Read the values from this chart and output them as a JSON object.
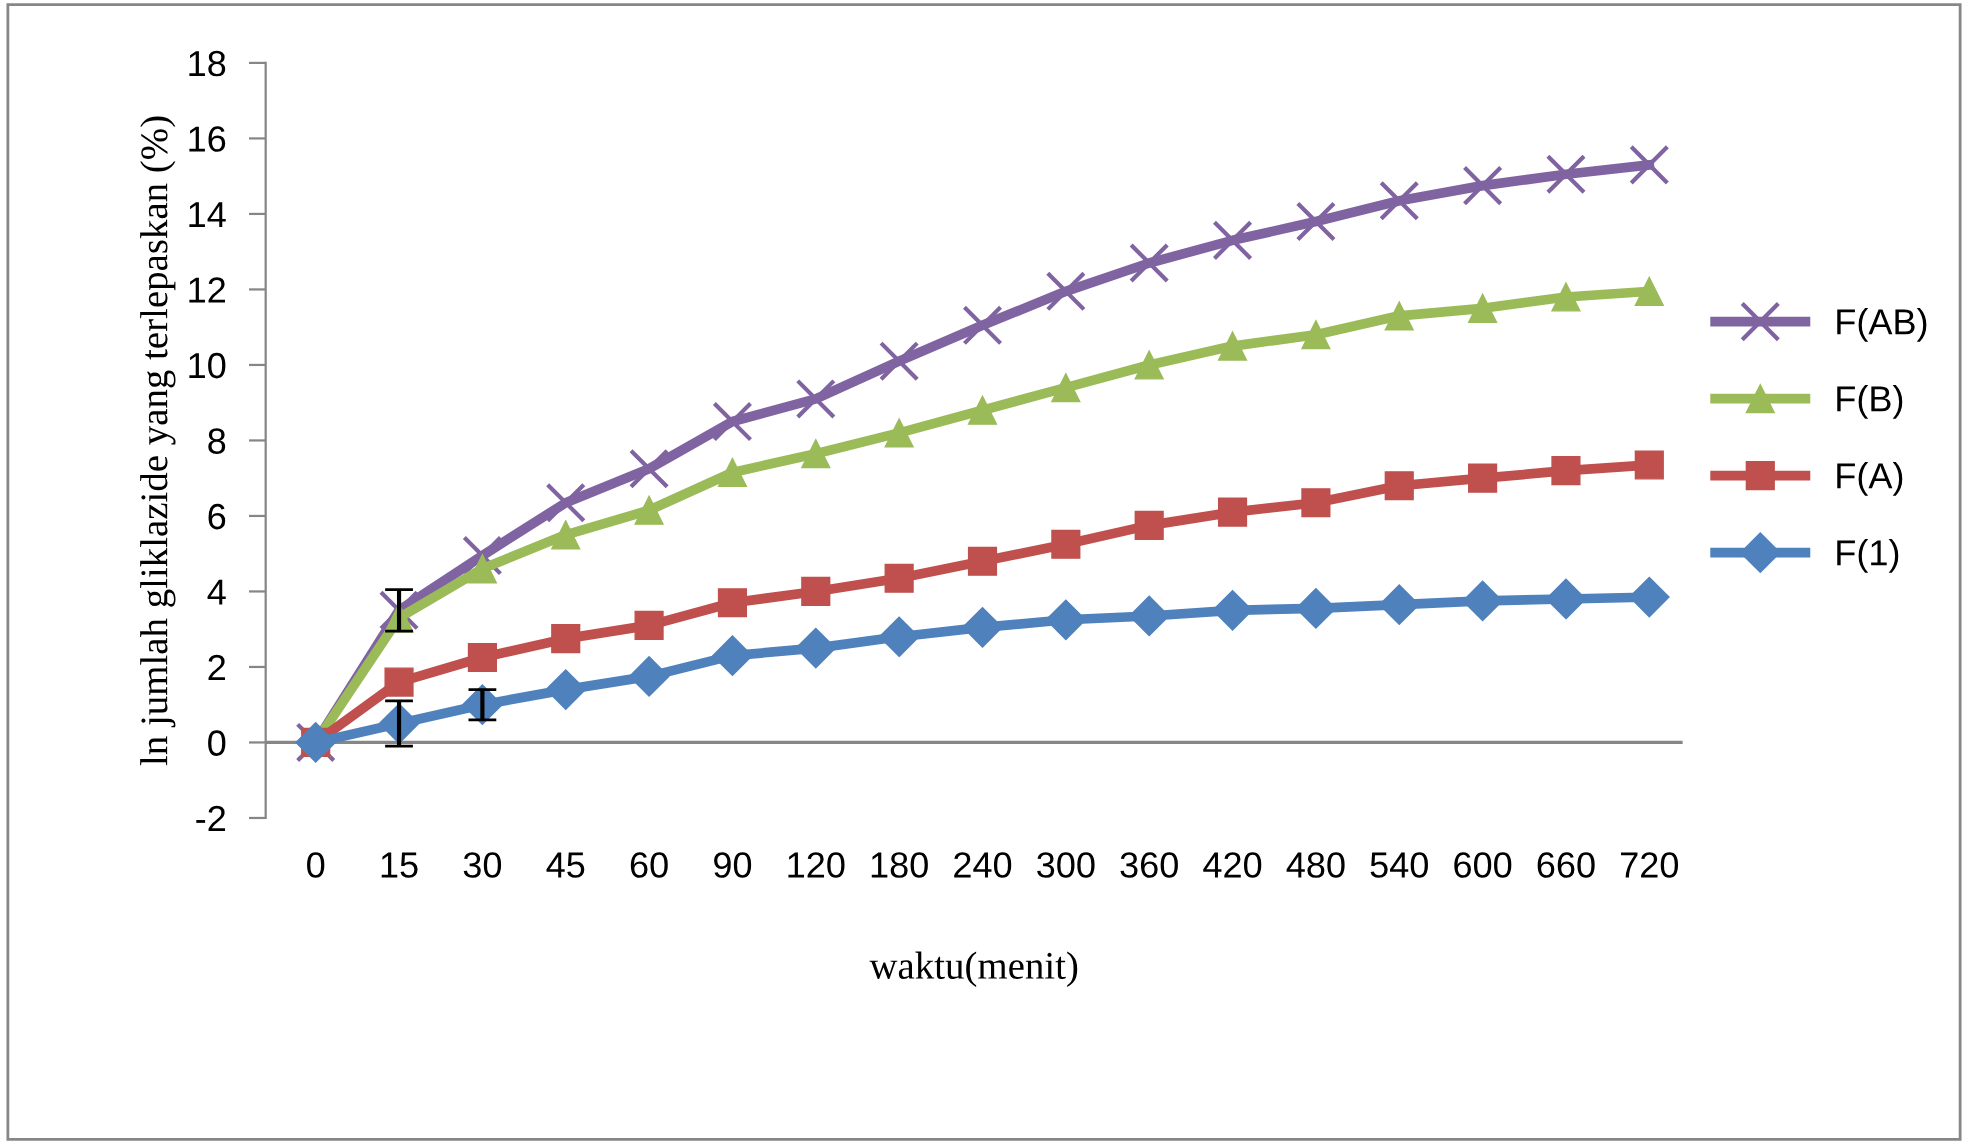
{
  "chart_data": {
    "type": "line",
    "xlabel": "waktu(menit)",
    "ylabel": "ln jumlah gliklazide yang terlepaskan (%)",
    "categories": [
      "0",
      "15",
      "30",
      "45",
      "60",
      "90",
      "120",
      "180",
      "240",
      "300",
      "360",
      "420",
      "480",
      "540",
      "600",
      "660",
      "720"
    ],
    "series": [
      {
        "name": "F(AB)",
        "color": "#8064a2",
        "marker": "cross",
        "values": [
          0,
          3.5,
          4.95,
          6.35,
          7.25,
          8.5,
          9.1,
          10.1,
          11.05,
          11.95,
          12.7,
          13.3,
          13.8,
          14.35,
          14.75,
          15.05,
          15.3
        ],
        "errors": [
          null,
          0.55,
          null,
          null,
          null,
          null,
          null,
          null,
          null,
          null,
          null,
          null,
          null,
          null,
          null,
          null,
          null
        ]
      },
      {
        "name": "F(B)",
        "color": "#9bbb59",
        "marker": "triangle",
        "values": [
          0,
          3.3,
          4.6,
          5.5,
          6.15,
          7.15,
          7.65,
          8.2,
          8.8,
          9.4,
          10.0,
          10.5,
          10.8,
          11.3,
          11.5,
          11.8,
          11.95
        ]
      },
      {
        "name": "F(A)",
        "color": "#c0504d",
        "marker": "square",
        "values": [
          0,
          1.6,
          2.25,
          2.75,
          3.1,
          3.7,
          4.0,
          4.35,
          4.8,
          5.25,
          5.75,
          6.1,
          6.35,
          6.8,
          7.0,
          7.2,
          7.35
        ]
      },
      {
        "name": "F(1)",
        "color": "#4f81bd",
        "marker": "diamond",
        "values": [
          0,
          0.5,
          1.0,
          1.4,
          1.75,
          2.3,
          2.5,
          2.8,
          3.05,
          3.25,
          3.35,
          3.5,
          3.55,
          3.65,
          3.75,
          3.8,
          3.85
        ],
        "errors": [
          null,
          0.6,
          0.4,
          null,
          null,
          null,
          null,
          null,
          null,
          null,
          null,
          null,
          null,
          null,
          null,
          null,
          null
        ]
      }
    ],
    "ylim": [
      -2,
      18
    ],
    "yticks": [
      -2,
      0,
      2,
      4,
      6,
      8,
      10,
      12,
      14,
      16,
      18
    ],
    "ref_lines": [
      {
        "axis": "y",
        "value": 0,
        "color": "#868686"
      }
    ],
    "legend": "right",
    "grid": false
  }
}
